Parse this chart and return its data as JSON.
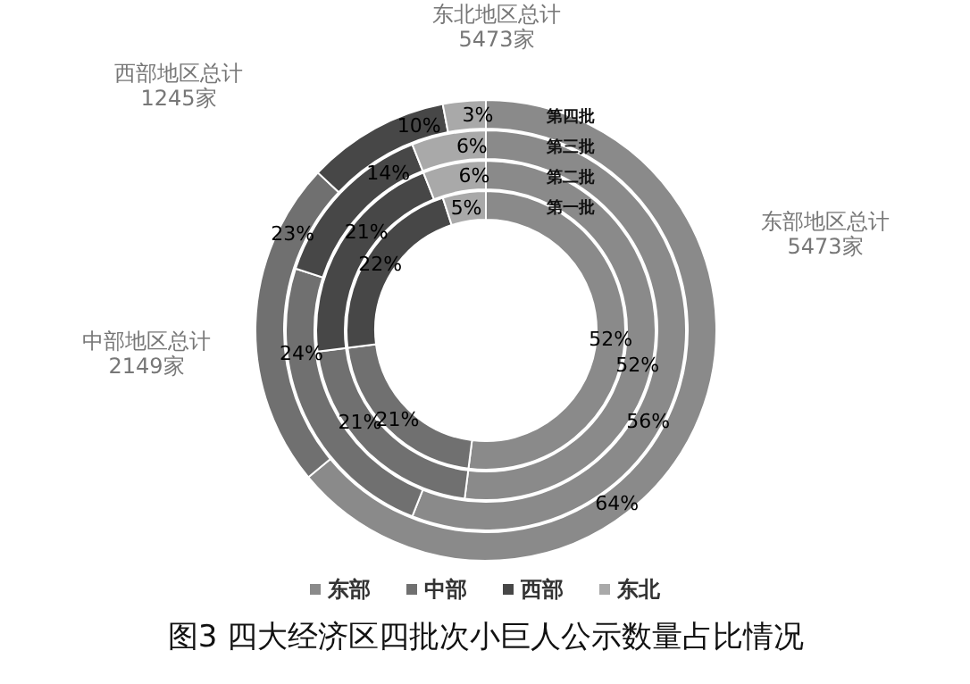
{
  "chart_data": {
    "type": "donut",
    "title": "图3  四大经济区四批次小巨人公示数量占比情况",
    "categories": [
      "东部",
      "中部",
      "西部",
      "东北"
    ],
    "colors": [
      "#8a8a8a",
      "#707070",
      "#474747",
      "#a9a9a9"
    ],
    "series": [
      {
        "name": "第一批",
        "values": [
          52,
          21,
          22,
          5
        ],
        "value_labels": [
          "52%",
          "21%",
          "22%",
          "5%"
        ]
      },
      {
        "name": "第二批",
        "values": [
          52,
          21,
          21,
          6
        ],
        "value_labels": [
          "52%",
          "21%",
          "21%",
          "6%"
        ]
      },
      {
        "name": "第三批",
        "values": [
          56,
          24,
          14,
          6
        ],
        "value_labels": [
          "56%",
          "24%",
          "14%",
          "6%"
        ]
      },
      {
        "name": "第四批",
        "values": [
          64,
          23,
          10,
          3
        ],
        "value_labels": [
          "64%",
          "23%",
          "10%",
          "3%"
        ]
      }
    ],
    "legend": "bottom",
    "annotations": [
      "东部地区总计\n5473家",
      "中部地区总计\n2149家",
      "西部地区总计\n1245家",
      "东北地区总计\n5473家"
    ]
  }
}
